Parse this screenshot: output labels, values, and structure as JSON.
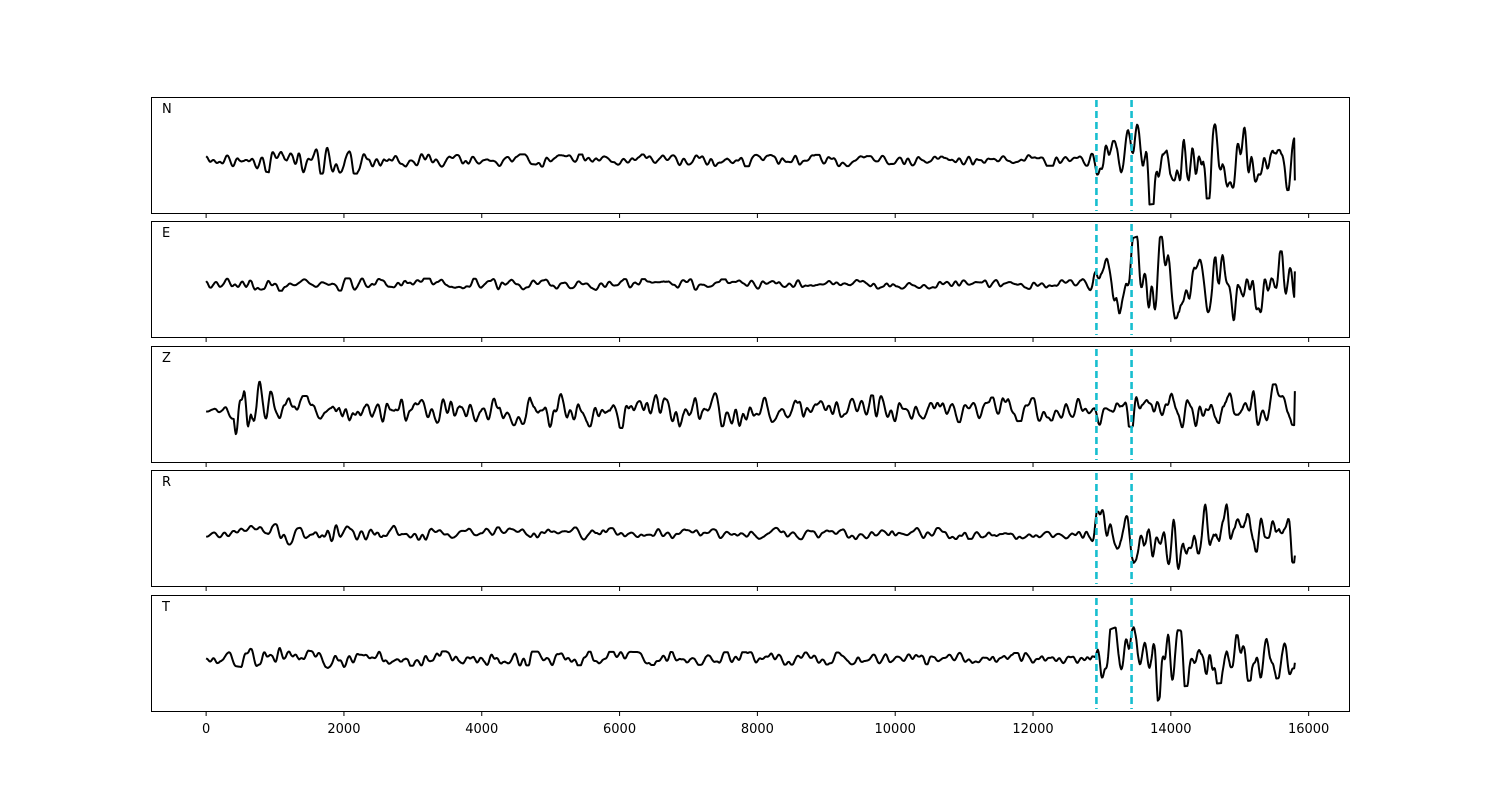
{
  "chart_data": {
    "type": "line",
    "xlabel": "",
    "ylabel": "",
    "xlim": [
      -800,
      16600
    ],
    "x_ticks": [
      0,
      2000,
      4000,
      6000,
      8000,
      10000,
      12000,
      14000,
      16000
    ],
    "x_tick_labels": [
      "0",
      "2000",
      "4000",
      "6000",
      "8000",
      "10000",
      "12000",
      "14000",
      "16000"
    ],
    "trace_start": 0,
    "trace_end": 15800,
    "trace_color": "#000000",
    "marker_color": "#17becf",
    "marker_style": "dashed",
    "markers": [
      12920,
      13430
    ],
    "grid": false,
    "legend": "none",
    "panels": [
      {
        "label": "N",
        "ylim": [
          -1,
          1
        ],
        "envelope": [
          [
            0,
            0.08
          ],
          [
            600,
            0.14
          ],
          [
            1000,
            0.25
          ],
          [
            2400,
            0.25
          ],
          [
            3000,
            0.12
          ],
          [
            12700,
            0.1
          ],
          [
            12920,
            0.35
          ],
          [
            13400,
            0.6
          ],
          [
            13600,
            0.85
          ],
          [
            15800,
            0.55
          ]
        ],
        "end_value": -0.38
      },
      {
        "label": "E",
        "ylim": [
          -1,
          1
        ],
        "envelope": [
          [
            0,
            0.08
          ],
          [
            600,
            0.18
          ],
          [
            1000,
            0.12
          ],
          [
            12700,
            0.08
          ],
          [
            12920,
            0.4
          ],
          [
            13250,
            0.8
          ],
          [
            13600,
            0.95
          ],
          [
            15800,
            0.6
          ]
        ],
        "end_value": 0.25
      },
      {
        "label": "Z",
        "ylim": [
          -1,
          1
        ],
        "envelope": [
          [
            0,
            0.06
          ],
          [
            400,
            0.18
          ],
          [
            470,
            0.95
          ],
          [
            560,
            0.9
          ],
          [
            800,
            0.55
          ],
          [
            1000,
            0.25
          ],
          [
            4500,
            0.3
          ],
          [
            4800,
            0.38
          ],
          [
            12700,
            0.2
          ],
          [
            13000,
            0.3
          ],
          [
            15800,
            0.5
          ]
        ],
        "end_value": 0.35
      },
      {
        "label": "R",
        "ylim": [
          -1,
          1
        ],
        "envelope": [
          [
            0,
            0.08
          ],
          [
            600,
            0.16
          ],
          [
            1000,
            0.22
          ],
          [
            2300,
            0.22
          ],
          [
            3000,
            0.12
          ],
          [
            12700,
            0.1
          ],
          [
            12920,
            0.4
          ],
          [
            13400,
            0.75
          ],
          [
            13600,
            0.85
          ],
          [
            15800,
            0.55
          ]
        ],
        "end_value": -0.42
      },
      {
        "label": "T",
        "ylim": [
          -1,
          1
        ],
        "envelope": [
          [
            0,
            0.06
          ],
          [
            600,
            0.18
          ],
          [
            1200,
            0.22
          ],
          [
            2300,
            0.14
          ],
          [
            12700,
            0.1
          ],
          [
            12920,
            0.45
          ],
          [
            13400,
            0.7
          ],
          [
            13700,
            0.95
          ],
          [
            14000,
            0.55
          ],
          [
            15800,
            0.35
          ]
        ],
        "end_value": -0.08
      }
    ]
  }
}
